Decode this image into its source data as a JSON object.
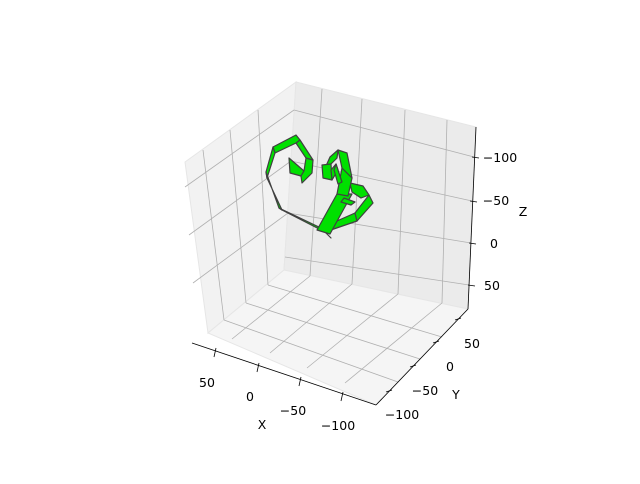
{
  "chart_data": {
    "type": "3d-ribbon",
    "title": "",
    "xlabel": "X",
    "ylabel": "Y",
    "zlabel": "Z",
    "xlim": [
      -120,
      80
    ],
    "ylim": [
      -130,
      90
    ],
    "zlim": [
      -130,
      80
    ],
    "z_inverted": true,
    "x_ticks": [
      "50",
      "0",
      "−50",
      "−100"
    ],
    "y_ticks": [
      "50",
      "0",
      "−50",
      "−100"
    ],
    "z_ticks": [
      "−100",
      "−50",
      "0",
      "50"
    ],
    "grid": true,
    "series_color": "#00e000",
    "edge_color": "#404040",
    "pane_color": "#f2f2f2"
  }
}
